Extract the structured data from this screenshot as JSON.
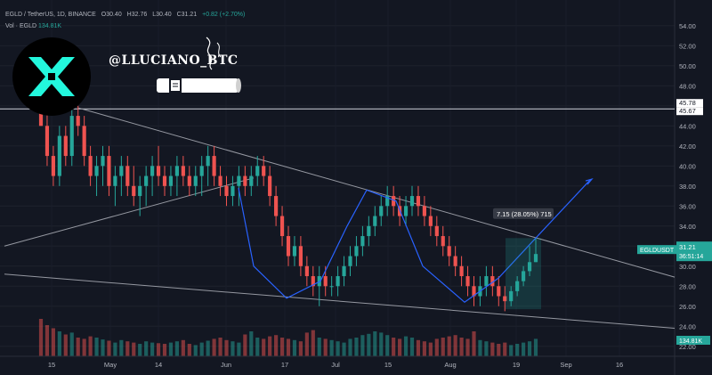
{
  "header": {
    "symbol_line": "EGLD / TetherUS, 1D, BINANCE",
    "o": "O30.40",
    "h": "H32.76",
    "l": "L30.40",
    "c": "C31.21",
    "change": "+0.82 (+2.70%)",
    "vol_line": "Vol · EGLD",
    "vol_value": "134.81K"
  },
  "watermark": {
    "handle": "@LLUCIANO_BTC"
  },
  "price_axis": {
    "ticks": [
      "54.00",
      "52.00",
      "50.00",
      "48.00",
      "46.00",
      "44.00",
      "42.00",
      "40.00",
      "38.00",
      "36.00",
      "34.00",
      "32.00",
      "30.00",
      "28.00",
      "26.00",
      "24.00",
      "22.00"
    ],
    "level_labels": [
      "45.78",
      "45.67"
    ],
    "symbol_tag": "EGLDUSDT",
    "last_price": "31.21",
    "countdown": "36:51:14",
    "volume_tag": "134.81K"
  },
  "time_axis": {
    "ticks": [
      "15",
      "May",
      "14",
      "Jun",
      "17",
      "Jul",
      "15",
      "Aug",
      "19",
      "Sep",
      "16"
    ]
  },
  "measure_label": "7.15 (28.05%) 715",
  "colors": {
    "bg": "#131722",
    "up": "#26a69a",
    "down": "#ef5350",
    "line": "#9598a1",
    "accent": "#2962ff"
  },
  "chart_data": {
    "type": "candlestick",
    "ylim": [
      21,
      55.5
    ],
    "x_range": [
      "2024-04-03",
      "2024-09-26"
    ],
    "horizontal_level": 45.7,
    "candles_ohlc": [
      [
        50,
        52,
        44,
        44
      ],
      [
        44,
        46,
        40,
        41
      ],
      [
        41,
        42,
        38,
        39
      ],
      [
        39,
        44,
        38,
        43
      ],
      [
        43,
        44,
        40,
        41
      ],
      [
        41,
        46,
        40,
        45
      ],
      [
        45,
        46,
        43,
        44
      ],
      [
        44,
        45,
        40,
        41
      ],
      [
        41,
        42,
        38,
        39
      ],
      [
        39,
        41,
        37,
        40
      ],
      [
        40,
        42,
        38,
        41
      ],
      [
        41,
        42,
        37,
        38
      ],
      [
        38,
        40,
        36,
        39
      ],
      [
        39,
        41,
        37,
        40
      ],
      [
        40,
        41,
        37,
        38
      ],
      [
        38,
        40,
        36,
        37
      ],
      [
        37,
        39,
        35,
        38
      ],
      [
        38,
        40,
        36,
        39
      ],
      [
        39,
        41,
        37,
        40
      ],
      [
        40,
        42,
        38,
        39
      ],
      [
        39,
        40,
        37,
        38
      ],
      [
        38,
        40,
        37,
        39
      ],
      [
        39,
        41,
        37,
        40
      ],
      [
        40,
        41,
        38,
        39
      ],
      [
        39,
        40,
        37,
        38
      ],
      [
        38,
        40,
        37,
        39
      ],
      [
        39,
        41,
        37,
        40
      ],
      [
        40,
        42,
        38,
        41
      ],
      [
        41,
        42,
        38,
        39
      ],
      [
        39,
        40,
        37,
        38
      ],
      [
        38,
        39,
        36,
        37
      ],
      [
        37,
        39,
        36,
        38
      ],
      [
        38,
        40,
        36,
        39
      ],
      [
        39,
        40,
        37,
        38
      ],
      [
        38,
        40,
        37,
        39
      ],
      [
        39,
        41,
        38,
        40
      ],
      [
        40,
        41,
        38,
        39
      ],
      [
        39,
        40,
        36,
        37
      ],
      [
        37,
        38,
        34,
        35
      ],
      [
        35,
        36,
        32,
        33
      ],
      [
        33,
        34,
        30,
        31
      ],
      [
        31,
        33,
        30,
        32
      ],
      [
        32,
        33,
        29,
        30
      ],
      [
        30,
        31,
        28,
        29
      ],
      [
        29,
        30,
        27,
        28
      ],
      [
        28,
        30,
        26,
        29
      ],
      [
        29,
        30,
        27,
        28
      ],
      [
        28,
        29,
        27,
        28
      ],
      [
        28,
        30,
        27,
        29
      ],
      [
        29,
        31,
        28,
        30
      ],
      [
        30,
        32,
        29,
        31
      ],
      [
        31,
        33,
        30,
        32
      ],
      [
        32,
        34,
        31,
        33
      ],
      [
        33,
        35,
        32,
        34
      ],
      [
        34,
        36,
        33,
        35
      ],
      [
        35,
        37,
        34,
        36
      ],
      [
        36,
        38,
        35,
        37
      ],
      [
        37,
        38,
        35,
        36
      ],
      [
        36,
        37,
        34,
        35
      ],
      [
        35,
        37,
        34,
        36
      ],
      [
        36,
        38,
        35,
        37
      ],
      [
        37,
        38,
        35,
        36
      ],
      [
        36,
        37,
        34,
        35
      ],
      [
        35,
        36,
        33,
        34
      ],
      [
        34,
        35,
        32,
        33
      ],
      [
        33,
        34,
        31,
        32
      ],
      [
        32,
        33,
        30,
        31
      ],
      [
        31,
        32,
        29,
        30
      ],
      [
        30,
        31,
        28,
        29
      ],
      [
        29,
        30,
        27,
        28
      ],
      [
        28,
        29,
        26,
        27
      ],
      [
        27,
        29,
        26,
        28
      ],
      [
        28,
        30,
        27,
        29
      ],
      [
        29,
        30,
        27,
        28
      ],
      [
        28,
        29,
        26,
        27
      ],
      [
        27,
        28,
        25.5,
        26.5
      ],
      [
        26.5,
        28,
        26,
        27.5
      ],
      [
        27.5,
        29,
        27,
        28.5
      ],
      [
        28.5,
        30,
        28,
        29.5
      ],
      [
        29.5,
        32,
        29,
        30.4
      ],
      [
        30.4,
        32.76,
        30.4,
        31.21
      ]
    ],
    "volumes": [
      60,
      50,
      45,
      40,
      35,
      38,
      30,
      28,
      32,
      30,
      27,
      25,
      22,
      26,
      24,
      22,
      20,
      24,
      22,
      21,
      20,
      22,
      24,
      26,
      20,
      18,
      22,
      25,
      28,
      30,
      26,
      24,
      22,
      35,
      40,
      30,
      28,
      32,
      34,
      30,
      28,
      26,
      24,
      38,
      42,
      30,
      28,
      26,
      24,
      22,
      28,
      30,
      34,
      36,
      40,
      38,
      34,
      30,
      28,
      32,
      30,
      26,
      24,
      22,
      28,
      30,
      32,
      34,
      30,
      28,
      40,
      26,
      24,
      22,
      20,
      22,
      18,
      20,
      22,
      24,
      28
    ]
  }
}
